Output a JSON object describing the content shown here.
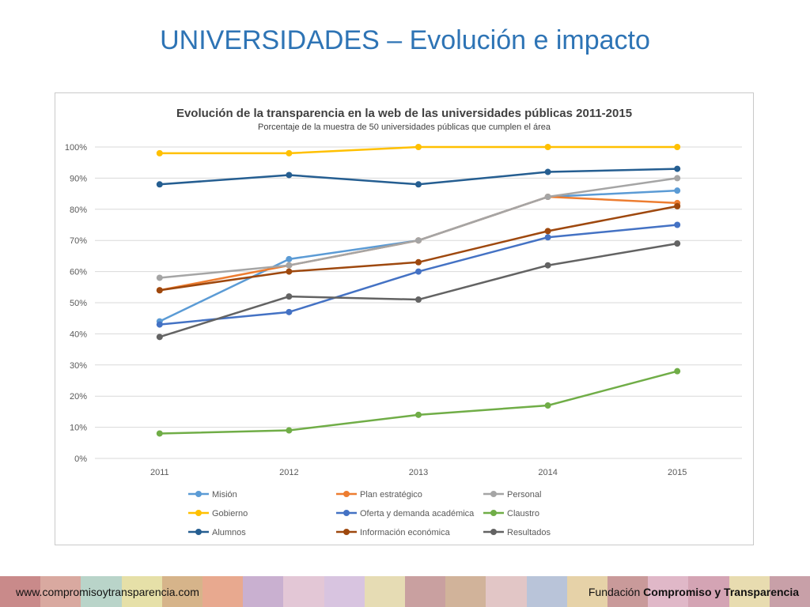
{
  "slide": {
    "title": "UNIVERSIDADES – Evolución e impacto"
  },
  "footer": {
    "url": "www.compromisoytransparencia.com",
    "org_prefix": "Fundación",
    "org_bold": "Compromiso y Transparencia",
    "band_colors": [
      "#c98a8a",
      "#d9a9a0",
      "#b9d4c9",
      "#e6e0a8",
      "#d6b48a",
      "#e8a98f",
      "#c9b0d0",
      "#e3c7d6",
      "#d8c4e0",
      "#e6dcb4",
      "#c9a0a0",
      "#d1b39a",
      "#e2c6c6",
      "#b9c4d9",
      "#e6d2a8",
      "#c99a9a",
      "#e0b8c8",
      "#d4a4b4",
      "#e8dcb0",
      "#c8a0a8"
    ]
  },
  "chart_data": {
    "type": "line",
    "title": "Evolución de la transparencia en la web de las universidades públicas 2011-2015",
    "subtitle": "Porcentaje de la muestra de 50 universidades públicas que cumplen el área",
    "xlabel": "",
    "ylabel": "",
    "x": [
      "2011",
      "2012",
      "2013",
      "2014",
      "2015"
    ],
    "ylim": [
      0,
      100
    ],
    "yticks": [
      "0%",
      "10%",
      "20%",
      "30%",
      "40%",
      "50%",
      "60%",
      "70%",
      "80%",
      "90%",
      "100%"
    ],
    "grid": true,
    "legend_position": "bottom",
    "series": [
      {
        "name": "Misión",
        "color": "#5b9bd5",
        "values": [
          44,
          64,
          70,
          84,
          86
        ]
      },
      {
        "name": "Plan estratégico",
        "color": "#ed7d31",
        "values": [
          54,
          62,
          70,
          84,
          82
        ]
      },
      {
        "name": "Personal",
        "color": "#a5a5a5",
        "values": [
          58,
          62,
          70,
          84,
          90
        ]
      },
      {
        "name": "Gobierno",
        "color": "#ffc000",
        "values": [
          98,
          98,
          100,
          100,
          100
        ]
      },
      {
        "name": "Oferta y demanda académica",
        "color": "#4472c4",
        "values": [
          43,
          47,
          60,
          71,
          75
        ]
      },
      {
        "name": "Claustro",
        "color": "#70ad47",
        "values": [
          8,
          9,
          14,
          17,
          28
        ]
      },
      {
        "name": "Alumnos",
        "color": "#255e91",
        "values": [
          88,
          91,
          88,
          92,
          93
        ]
      },
      {
        "name": "Información económica",
        "color": "#9e480e",
        "values": [
          54,
          60,
          63,
          73,
          81
        ]
      },
      {
        "name": "Resultados",
        "color": "#636363",
        "values": [
          39,
          52,
          51,
          62,
          69
        ]
      }
    ]
  }
}
